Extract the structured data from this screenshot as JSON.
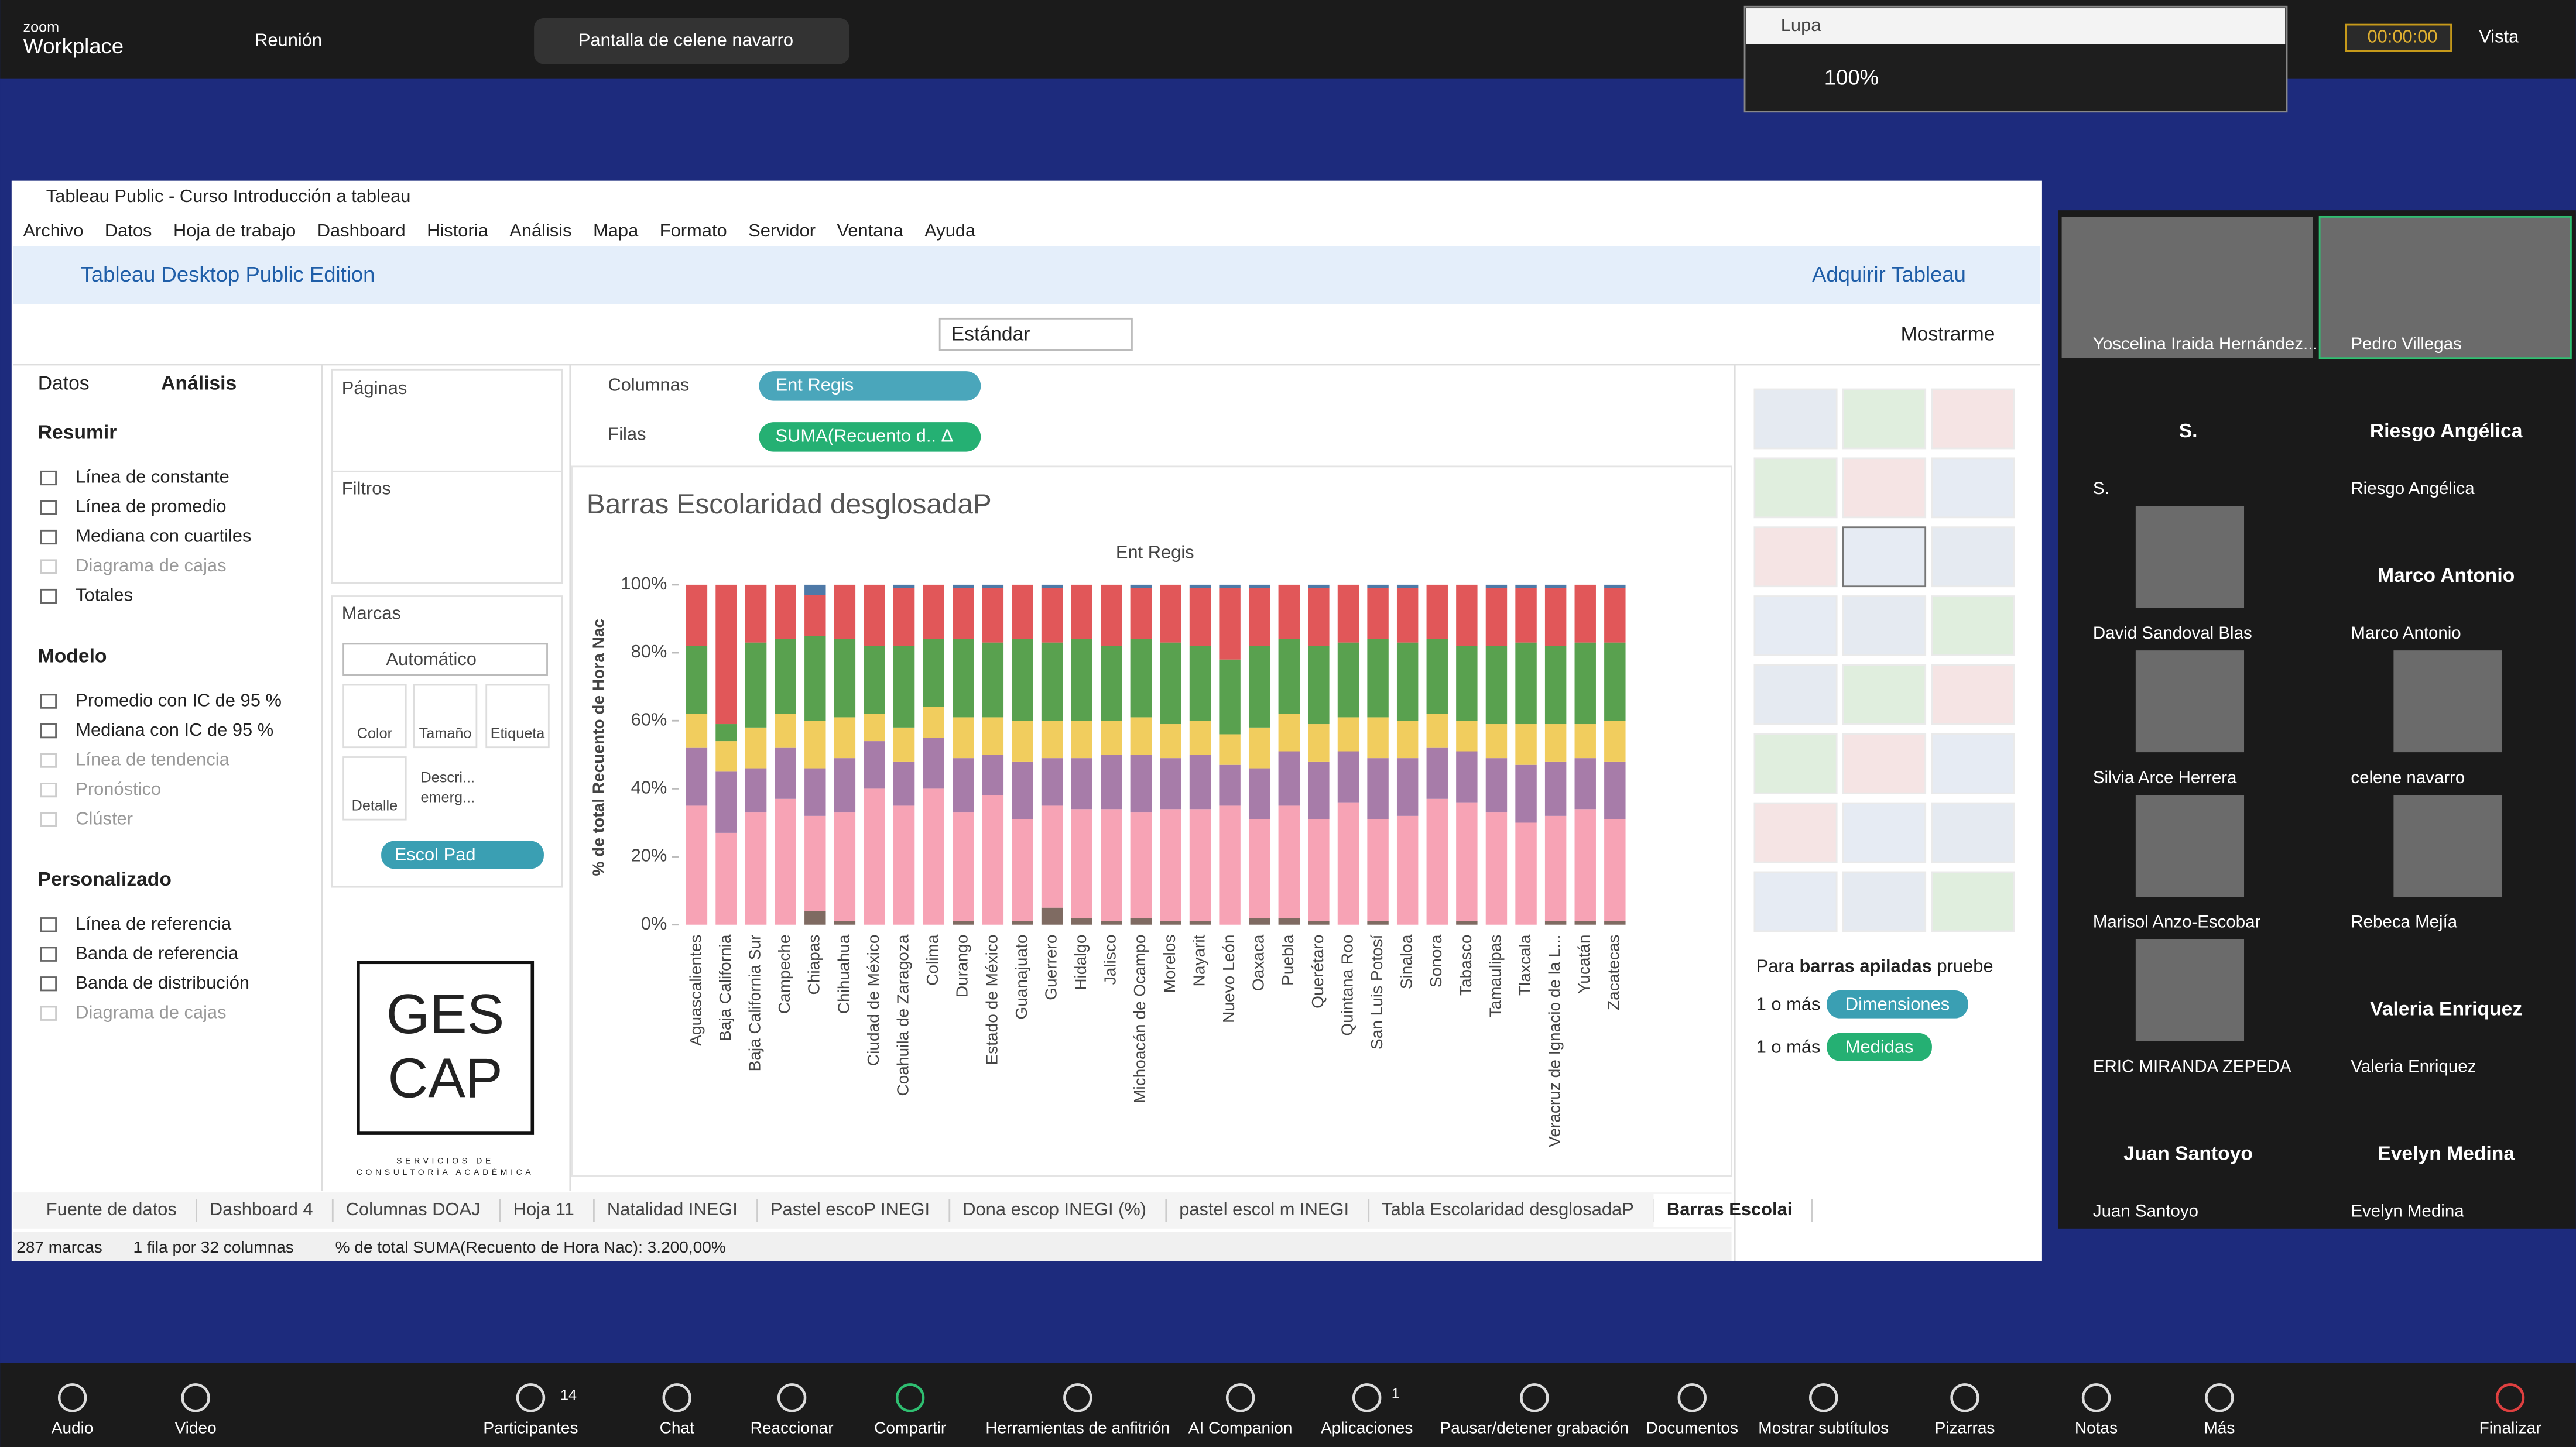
{
  "zoom": {
    "brand": "zoom",
    "product": "Workplace",
    "meeting": "Reunión",
    "share": "Pantalla de celene navarro",
    "timer": "00:00:00",
    "view": "Vista"
  },
  "magnifier": {
    "title": "Lupa",
    "zoom": "100%"
  },
  "tableau": {
    "window_title": "Tableau Public - Curso Introducción a tableau",
    "menu": [
      "Archivo",
      "Datos",
      "Hoja de trabajo",
      "Dashboard",
      "Historia",
      "Análisis",
      "Mapa",
      "Formato",
      "Servidor",
      "Ventana",
      "Ayuda"
    ],
    "edition": "Tableau Desktop Public Edition",
    "buy": "Adquirir Tableau",
    "fit": "Estándar",
    "show_me": "Mostrarme",
    "pane_tabs": [
      "Datos",
      "Análisis"
    ],
    "analytics": [
      {
        "title": "Resumir",
        "items": [
          {
            "label": "Línea de constante",
            "disabled": false
          },
          {
            "label": "Línea de promedio",
            "disabled": false
          },
          {
            "label": "Mediana con cuartiles",
            "disabled": false
          },
          {
            "label": "Diagrama de cajas",
            "disabled": true
          },
          {
            "label": "Totales",
            "disabled": false
          }
        ]
      },
      {
        "title": "Modelo",
        "items": [
          {
            "label": "Promedio con IC de 95 %",
            "disabled": false
          },
          {
            "label": "Mediana con IC de 95 %",
            "disabled": false
          },
          {
            "label": "Línea de tendencia",
            "disabled": true
          },
          {
            "label": "Pronóstico",
            "disabled": true
          },
          {
            "label": "Clúster",
            "disabled": true
          }
        ]
      },
      {
        "title": "Personalizado",
        "items": [
          {
            "label": "Línea de referencia",
            "disabled": false
          },
          {
            "label": "Banda de referencia",
            "disabled": false
          },
          {
            "label": "Banda de distribución",
            "disabled": false
          },
          {
            "label": "Diagrama de cajas",
            "disabled": true
          }
        ]
      }
    ],
    "cards": {
      "pages": "Páginas",
      "filters": "Filtros",
      "marks": "Marcas",
      "mark_type": "Automático",
      "buttons": [
        "Color",
        "Tamaño",
        "Etiqueta",
        "Detalle"
      ],
      "tooltip": [
        "Descri...",
        "emerg..."
      ],
      "color_pill": "Escol Pad"
    },
    "logo": {
      "line1": "GES",
      "line2": "CAP",
      "tagline1": "SERVICIOS DE",
      "tagline2": "CONSULTORÍA ACADÉMICA"
    },
    "shelves": {
      "columns": "Columnas",
      "columns_pill": "Ent Regis",
      "rows": "Filas",
      "rows_pill": "SUMA(Recuento d.. Δ"
    },
    "show_me_hint": {
      "pre": "Para",
      "bold": "barras apiladas",
      "post": "pruebe",
      "more1": "1 o más",
      "dimensions": "Dimensiones",
      "more2": "1 o más",
      "measures": "Medidas"
    },
    "sheet_tabs": [
      "Fuente de datos",
      "Dashboard 4",
      "Columnas DOAJ",
      "Hoja 11",
      "Natalidad INEGI",
      "Pastel escoP INEGI",
      "Dona escop INEGI (%)",
      "pastel escol m INEGI",
      "Tabla Escolaridad desglosadaP",
      "Barras Escolai"
    ],
    "status": [
      "287 marcas",
      "1 fila por 32 columnas",
      "% de total SUMA(Recuento de Hora Nac): 3.200,00%"
    ]
  },
  "chart_data": {
    "type": "stacked_bar",
    "title": "Barras Escolaridad desglosadaP",
    "x_header": "Ent Regis",
    "y_label": "% de total Recuento de Hora Nac",
    "categories": [
      "Aguascalientes",
      "Baja California",
      "Baja California Sur",
      "Campeche",
      "Chiapas",
      "Chihuahua",
      "Ciudad de México",
      "Coahuila de Zaragoza",
      "Colima",
      "Durango",
      "Estado de México",
      "Guanajuato",
      "Guerrero",
      "Hidalgo",
      "Jalisco",
      "Michoacán de Ocampo",
      "Morelos",
      "Nayarit",
      "Nuevo León",
      "Oaxaca",
      "Puebla",
      "Querétaro",
      "Quintana Roo",
      "San Luis Potosí",
      "Sinaloa",
      "Sonora",
      "Tabasco",
      "Tamaulipas",
      "Tlaxcala",
      "Veracruz de Ignacio de la L...",
      "Yucatán",
      "Zacatecas"
    ],
    "series": [
      {
        "color": "#7f6b62",
        "values": [
          0,
          0,
          0,
          0,
          4,
          1,
          0,
          0,
          0,
          1,
          0,
          1,
          5,
          2,
          1,
          2,
          1,
          1,
          0,
          2,
          2,
          1,
          0,
          1,
          0,
          0,
          1,
          0,
          0,
          1,
          1,
          1
        ]
      },
      {
        "color": "#f7a3b5",
        "values": [
          35,
          27,
          33,
          37,
          28,
          32,
          40,
          35,
          40,
          32,
          38,
          30,
          30,
          32,
          33,
          31,
          33,
          33,
          35,
          29,
          33,
          30,
          36,
          30,
          32,
          37,
          35,
          33,
          30,
          31,
          33,
          30
        ]
      },
      {
        "color": "#a77ca9",
        "values": [
          17,
          18,
          13,
          15,
          14,
          16,
          14,
          13,
          15,
          16,
          12,
          17,
          14,
          15,
          16,
          17,
          15,
          16,
          12,
          15,
          16,
          17,
          15,
          18,
          17,
          15,
          15,
          16,
          17,
          16,
          15,
          17
        ]
      },
      {
        "color": "#f1cd5e",
        "values": [
          10,
          9,
          12,
          10,
          14,
          12,
          8,
          10,
          9,
          12,
          11,
          12,
          11,
          11,
          10,
          11,
          10,
          10,
          9,
          12,
          11,
          11,
          10,
          12,
          11,
          10,
          9,
          10,
          12,
          11,
          10,
          12
        ]
      },
      {
        "color": "#59a14f",
        "values": [
          20,
          5,
          25,
          22,
          25,
          23,
          20,
          24,
          20,
          23,
          22,
          24,
          23,
          24,
          22,
          23,
          24,
          22,
          22,
          24,
          22,
          23,
          22,
          23,
          23,
          22,
          22,
          23,
          24,
          23,
          24,
          23
        ]
      },
      {
        "color": "#e15759",
        "values": [
          18,
          41,
          17,
          16,
          12,
          16,
          18,
          17,
          16,
          15,
          16,
          16,
          16,
          16,
          18,
          15,
          17,
          17,
          21,
          17,
          16,
          17,
          17,
          15,
          16,
          16,
          18,
          17,
          16,
          17,
          17,
          16
        ]
      },
      {
        "color": "#4e79a7",
        "values": [
          0,
          0,
          0,
          0,
          3,
          0,
          0,
          1,
          0,
          1,
          1,
          0,
          1,
          0,
          0,
          1,
          0,
          1,
          1,
          1,
          0,
          1,
          0,
          1,
          1,
          0,
          0,
          1,
          1,
          1,
          0,
          1
        ]
      }
    ],
    "ylim": [
      0,
      100
    ],
    "yticks": [
      {
        "value": 0,
        "label": "0%"
      },
      {
        "value": 20,
        "label": "20%"
      },
      {
        "value": 40,
        "label": "40%"
      },
      {
        "value": 60,
        "label": "60%"
      },
      {
        "value": 80,
        "label": "80%"
      },
      {
        "value": 100,
        "label": "100%"
      }
    ],
    "grid": false
  },
  "participants": [
    {
      "label": "Yoscelina Iraida Hernández..."
    },
    {
      "label": "Pedro Villegas"
    },
    {
      "label": "S.",
      "avatar": "S."
    },
    {
      "label": "Riesgo Angélica",
      "avatar": "Riesgo Angélica"
    },
    {
      "label": "David Sandoval Blas"
    },
    {
      "label": "Marco Antonio",
      "avatar": "Marco Antonio"
    },
    {
      "label": "Silvia Arce Herrera"
    },
    {
      "label": "celene navarro"
    },
    {
      "label": "Marisol Anzo-Escobar"
    },
    {
      "label": "Rebeca Mejía"
    },
    {
      "label": "ERIC  MIRANDA ZEPEDA"
    },
    {
      "label": "Valeria Enriquez",
      "avatar": "Valeria Enriquez"
    },
    {
      "label": "Juan Santoyo",
      "avatar": "Juan Santoyo"
    },
    {
      "label": "Evelyn Medina",
      "avatar": "Evelyn Medina"
    }
  ],
  "toolbar": {
    "items": [
      "Audio",
      "Video",
      "Participantes",
      "Chat",
      "Reaccionar",
      "Compartir",
      "Herramientas de anfitrión",
      "AI Companion",
      "Aplicaciones",
      "Pausar/detener grabación",
      "Documentos",
      "Mostrar subtítulos",
      "Pizarras",
      "Notas",
      "Más",
      "Finalizar"
    ],
    "participant_count": "14",
    "apps_count": "1"
  }
}
